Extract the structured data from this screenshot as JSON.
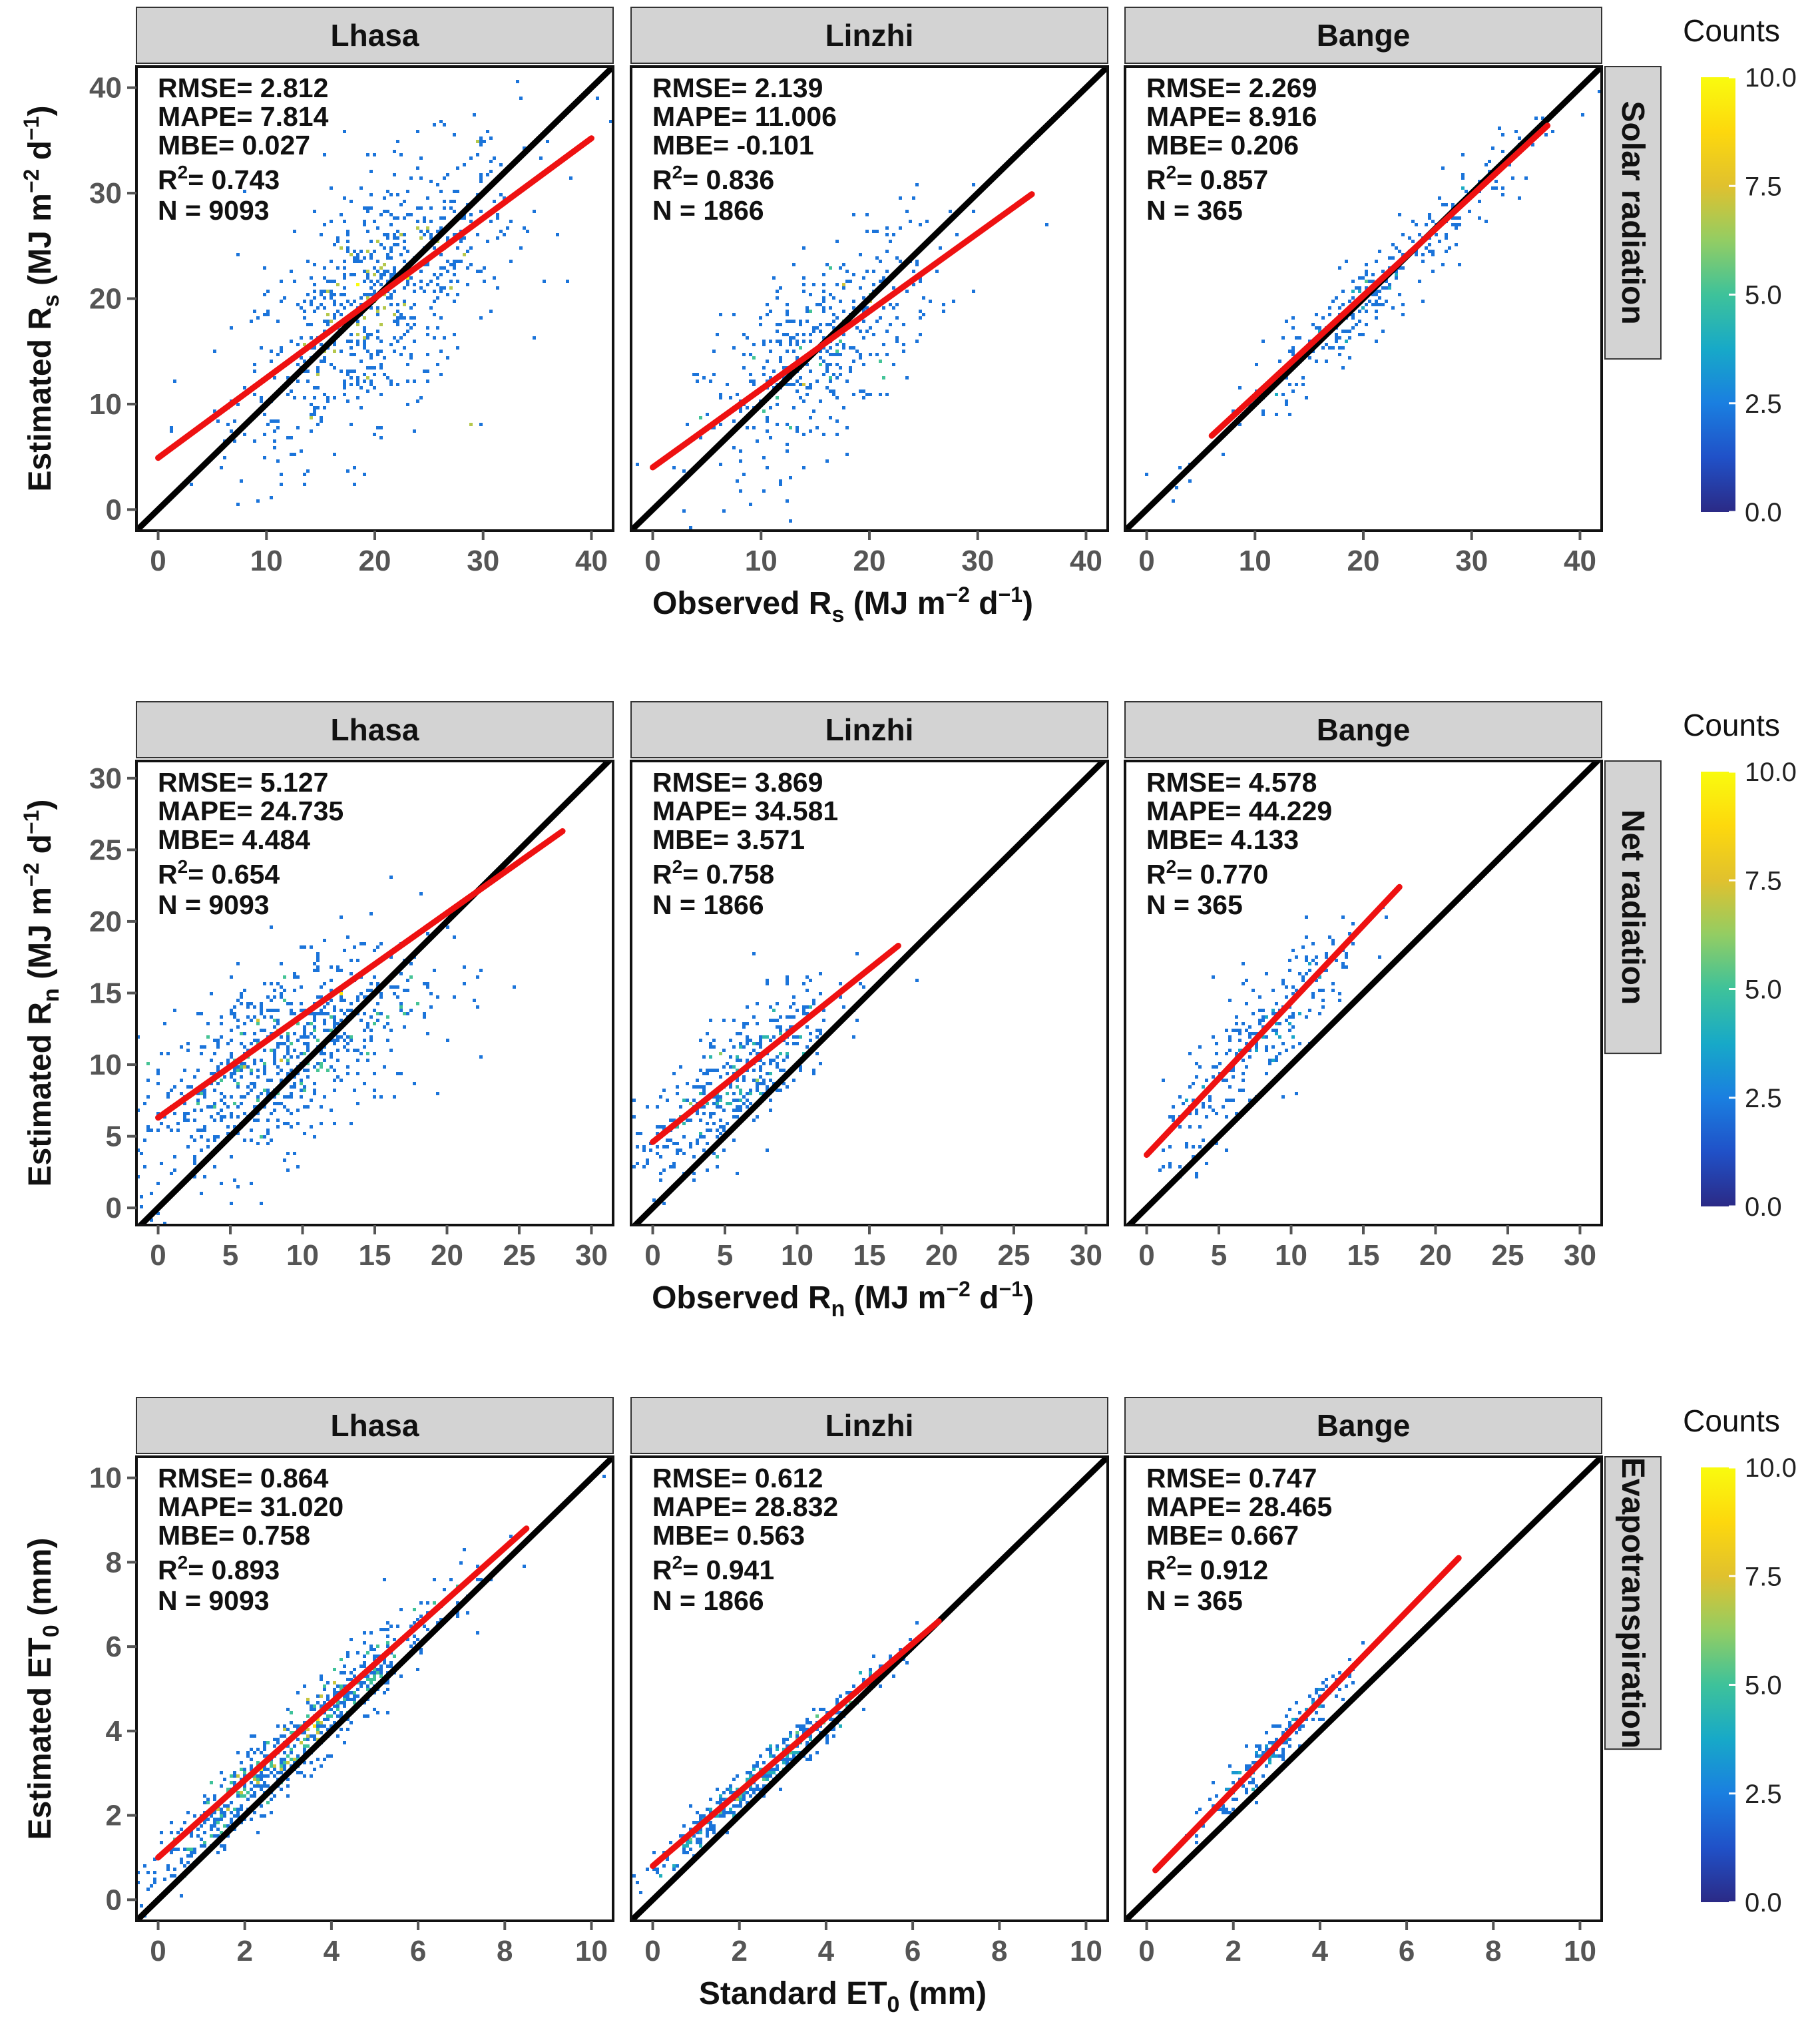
{
  "chart_data": [
    {
      "type": "heatmap",
      "variable": "Solar radiation",
      "xlabel": {
        "main": "Observed R",
        "sub": "s",
        "unit_pre": "(MJ m",
        "sup1": "−2",
        "unit_mid": " d",
        "sup2": "−1",
        "unit_post": ")"
      },
      "ylabel": {
        "main": "Estimated R",
        "sub": "s",
        "unit_pre": "(MJ m",
        "sup1": "−2",
        "unit_mid": " d",
        "sup2": "−1",
        "unit_post": ")"
      },
      "xlim": [
        -2,
        42
      ],
      "ylim": [
        -2,
        42
      ],
      "xticks": [
        0,
        10,
        20,
        30,
        40
      ],
      "yticks": [
        0,
        10,
        20,
        30,
        40
      ],
      "colorbar": {
        "title": "Counts",
        "ticks": [
          "0.0",
          "2.5",
          "5.0",
          "7.5",
          "10.0"
        ],
        "range": [
          0,
          10
        ]
      },
      "panels": [
        {
          "station": "Lhasa",
          "stats": {
            "rmse": "RMSE= 2.812",
            "mape": "MAPE= 7.814",
            "mbe": "MBE= 0.027",
            "r2_label": "R",
            "r2_sup": "2",
            "r2_value": "= 0.743",
            "n": "N = 9093"
          },
          "fit": {
            "x": [
              0,
              40
            ],
            "y": [
              4.9,
              35.2
            ]
          },
          "cloud": {
            "center": [
              20,
              20
            ],
            "spread": [
              6.5,
              5.5
            ],
            "slope": 0.72,
            "count": 700,
            "core": 0.55,
            "outliers": 40
          }
        },
        {
          "station": "Linzhi",
          "stats": {
            "rmse": "RMSE=  2.139",
            "mape": "MAPE= 11.006",
            "mbe": "MBE= -0.101",
            "r2_label": "R",
            "r2_sup": "2",
            "r2_value": "= 0.836",
            "n": "N = 1866"
          },
          "fit": {
            "x": [
              0,
              35
            ],
            "y": [
              4.0,
              29.9
            ]
          },
          "cloud": {
            "center": [
              15,
              15
            ],
            "spread": [
              5.5,
              4.5
            ],
            "slope": 0.74,
            "count": 420,
            "core": 0.25,
            "outliers": 10
          }
        },
        {
          "station": "Bange",
          "stats": {
            "rmse": "RMSE=  2.269",
            "mape": "MAPE= 8.916",
            "mbe": "MBE= 0.206",
            "r2_label": "R",
            "r2_sup": "2",
            "r2_value": "= 0.857",
            "n": "N = 365"
          },
          "fit": {
            "x": [
              6,
              37
            ],
            "y": [
              7.0,
              36.4
            ]
          },
          "cloud": {
            "center": [
              21,
              21
            ],
            "spread": [
              7.0,
              2.0
            ],
            "slope": 0.95,
            "count": 280,
            "core": 0.05,
            "outliers": 6
          }
        }
      ],
      "row_label": "Solar radiation"
    },
    {
      "type": "heatmap",
      "variable": "Net radiation",
      "xlabel": {
        "main": "Observed R",
        "sub": "n",
        "unit_pre": "(MJ m",
        "sup1": "−2",
        "unit_mid": " d",
        "sup2": "−1",
        "unit_post": ")"
      },
      "ylabel": {
        "main": "Estimated R",
        "sub": "n",
        "unit_pre": "(MJ m",
        "sup1": "−2",
        "unit_mid": " d",
        "sup2": "−1",
        "unit_post": ")"
      },
      "xlim": [
        -1.5,
        31.5
      ],
      "ylim": [
        -1.2,
        31.2
      ],
      "xticks": [
        0,
        5,
        10,
        15,
        20,
        25,
        30
      ],
      "yticks": [
        0,
        5,
        10,
        15,
        20,
        25,
        30
      ],
      "colorbar": {
        "title": "Counts",
        "ticks": [
          "0.0",
          "2.5",
          "5.0",
          "7.5",
          "10.0"
        ],
        "range": [
          0,
          10
        ]
      },
      "panels": [
        {
          "station": "Lhasa",
          "stats": {
            "rmse": "RMSE= 5.127",
            "mape": "MAPE= 24.735",
            "mbe": "MBE= 4.484",
            "r2_label": "R",
            "r2_sup": "2",
            "r2_value": "= 0.654",
            "n": "N = 9093"
          },
          "fit": {
            "x": [
              0,
              28
            ],
            "y": [
              6.3,
              26.3
            ]
          },
          "cloud": {
            "center": [
              8,
              10.5
            ],
            "spread": [
              5.0,
              3.2
            ],
            "slope": 0.5,
            "count": 750,
            "core": 0.45,
            "outliers": 12
          }
        },
        {
          "station": "Linzhi",
          "stats": {
            "rmse": "RMSE=  3.869",
            "mape": "MAPE= 34.581",
            "mbe": "MBE= 3.571",
            "r2_label": "R",
            "r2_sup": "2",
            "r2_value": "= 0.758",
            "n": "N = 1866"
          },
          "fit": {
            "x": [
              0,
              17
            ],
            "y": [
              4.6,
              18.3
            ]
          },
          "cloud": {
            "center": [
              5.5,
              9
            ],
            "spread": [
              3.5,
              2.2
            ],
            "slope": 0.8,
            "count": 420,
            "core": 0.15,
            "outliers": 4
          }
        },
        {
          "station": "Bange",
          "stats": {
            "rmse": "RMSE=  4.578",
            "mape": "MAPE= 44.229",
            "mbe": "MBE= 4.133",
            "r2_label": "R",
            "r2_sup": "2",
            "r2_value": "= 0.770",
            "n": "N = 365"
          },
          "fit": {
            "x": [
              0,
              17.5
            ],
            "y": [
              3.7,
              22.4
            ]
          },
          "cloud": {
            "center": [
              8,
              12
            ],
            "spread": [
              3.5,
              2.0
            ],
            "slope": 1.05,
            "count": 260,
            "core": 0.0,
            "outliers": 4
          }
        }
      ],
      "row_label": "Net radiation"
    },
    {
      "type": "heatmap",
      "variable": "Evapotranspiration",
      "xlabel": {
        "main": "Standard ET",
        "sub": "0",
        "unit_pre": "(mm)",
        "sup1": "",
        "unit_mid": "",
        "sup2": "",
        "unit_post": ""
      },
      "ylabel": {
        "main": "Estimated ET",
        "sub": "0",
        "unit_pre": "(mm)",
        "sup1": "",
        "unit_mid": "",
        "sup2": "",
        "unit_post": ""
      },
      "xlim": [
        -0.5,
        10.5
      ],
      "ylim": [
        -0.5,
        10.5
      ],
      "xticks": [
        0,
        2,
        4,
        6,
        8,
        10
      ],
      "yticks": [
        0,
        2,
        4,
        6,
        8,
        10
      ],
      "colorbar": {
        "title": "Counts",
        "ticks": [
          "0.0",
          "2.5",
          "5.0",
          "7.5",
          "10.0"
        ],
        "range": [
          0,
          10
        ]
      },
      "panels": [
        {
          "station": "Lhasa",
          "stats": {
            "rmse": "RMSE= 0.864",
            "mape": "MAPE= 31.020",
            "mbe": "MBE= 0.758",
            "r2_label": "R",
            "r2_sup": "2",
            "r2_value": "= 0.893",
            "n": "N = 9093"
          },
          "fit": {
            "x": [
              0,
              8.5
            ],
            "y": [
              1.0,
              8.8
            ]
          },
          "cloud": {
            "center": [
              3.0,
              3.6
            ],
            "spread": [
              1.7,
              0.45
            ],
            "slope": 0.95,
            "count": 720,
            "core": 0.6,
            "outliers": 8
          }
        },
        {
          "station": "Linzhi",
          "stats": {
            "rmse": "RMSE=  0.612",
            "mape": "MAPE= 28.832",
            "mbe": "MBE= 0.563",
            "r2_label": "R",
            "r2_sup": "2",
            "r2_value": "= 0.941",
            "n": "N = 1866"
          },
          "fit": {
            "x": [
              0,
              6.6
            ],
            "y": [
              0.8,
              6.6
            ]
          },
          "cloud": {
            "center": [
              2.6,
              3.1
            ],
            "spread": [
              1.4,
              0.25
            ],
            "slope": 0.9,
            "count": 420,
            "core": 0.2,
            "outliers": 2
          }
        },
        {
          "station": "Bange",
          "stats": {
            "rmse": "RMSE=  0.747",
            "mape": "MAPE= 28.465",
            "mbe": "MBE= 0.667",
            "r2_label": "R",
            "r2_sup": "2",
            "r2_value": "= 0.912",
            "n": "N = 365"
          },
          "fit": {
            "x": [
              0.2,
              7.2
            ],
            "y": [
              0.7,
              8.1
            ]
          },
          "cloud": {
            "center": [
              2.8,
              3.5
            ],
            "spread": [
              0.9,
              0.25
            ],
            "slope": 1.05,
            "count": 200,
            "core": 0.0,
            "outliers": 2
          }
        }
      ],
      "row_label": "Evapotranspiration"
    }
  ],
  "colors": {
    "strip_bg": "#d3d3d3",
    "fit_line": "#ee1111",
    "identity_line": "#000000",
    "tick_text": "#555555",
    "colorbar": [
      "#2b2a86",
      "#2051c8",
      "#1a7fe0",
      "#17a9c8",
      "#3ec29a",
      "#93cd63",
      "#e0c12e",
      "#fdd80d",
      "#f9fb0e"
    ]
  }
}
